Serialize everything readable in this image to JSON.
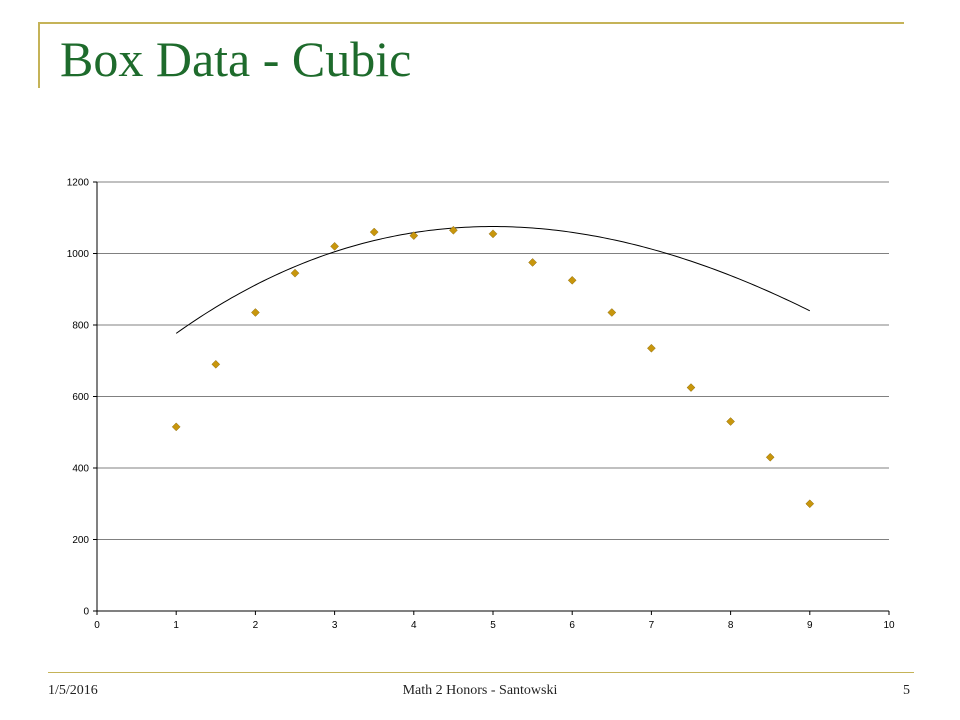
{
  "slide": {
    "title": "Box Data - Cubic",
    "footer_date": "1/5/2016",
    "footer_center": "Math 2 Honors - Santowski",
    "page_number": "5"
  },
  "colors": {
    "title": "#1e6b2c",
    "frame": "#c5b358",
    "marker": "#c8960c",
    "curve": "#000000",
    "grid": "#808080"
  },
  "chart_data": {
    "type": "scatter",
    "title": "",
    "xlabel": "",
    "ylabel": "",
    "xlim": [
      0,
      10
    ],
    "ylim": [
      0,
      1200
    ],
    "x_ticks": [
      0,
      1,
      2,
      3,
      4,
      5,
      6,
      7,
      8,
      9,
      10
    ],
    "y_ticks": [
      0,
      200,
      400,
      600,
      800,
      1000,
      1200
    ],
    "grid": "horizontal",
    "legend": "none",
    "marker": "diamond",
    "series": [
      {
        "x": [
          1,
          1.5,
          2,
          2.5,
          3,
          3.5,
          4,
          4.5,
          5,
          5.5,
          6,
          6.5,
          7,
          7.5,
          8,
          8.5,
          9
        ],
        "y": [
          515,
          690,
          835,
          945,
          1020,
          1060,
          1050,
          1065,
          1055,
          975,
          925,
          835,
          735,
          625,
          530,
          430,
          300
        ]
      }
    ],
    "trendline": {
      "type": "cubic",
      "x_range": [
        1,
        9
      ],
      "coefficients": [
        0.5,
        -24.2,
        204.4,
        595.9
      ]
    }
  }
}
